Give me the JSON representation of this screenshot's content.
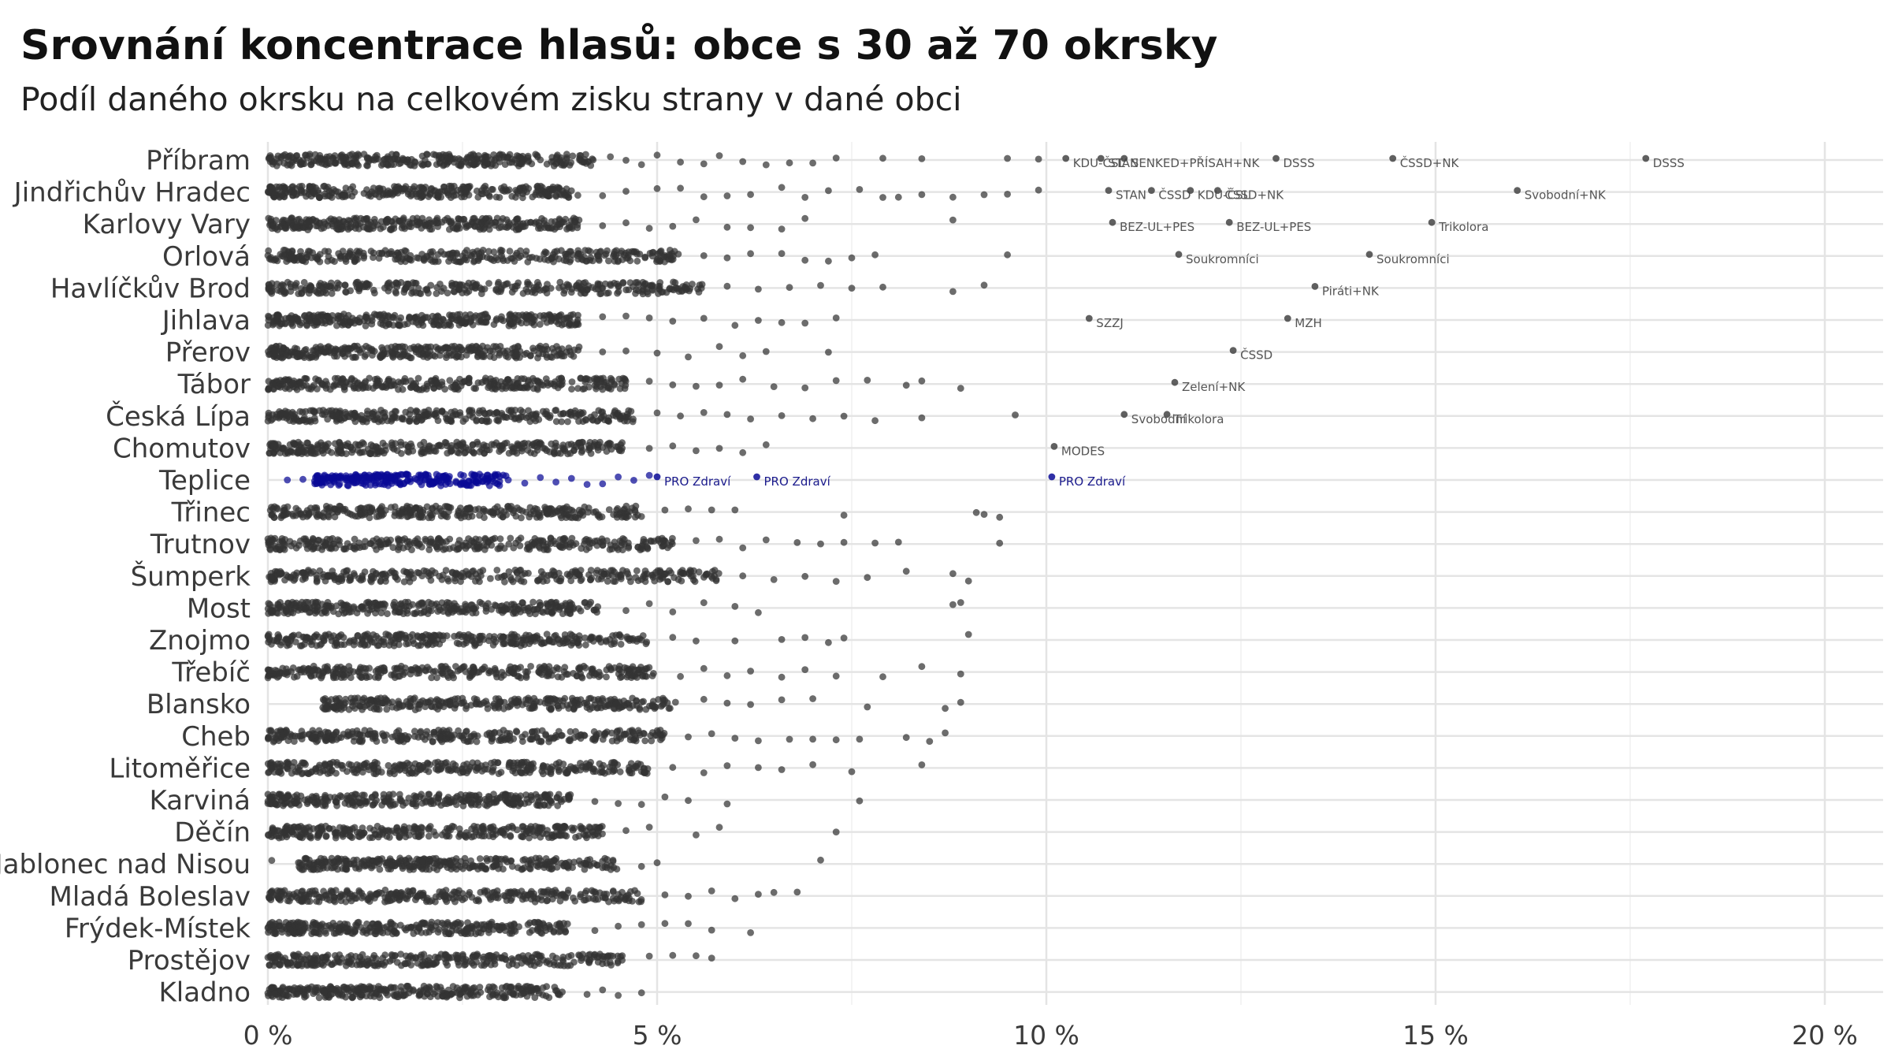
{
  "chart_data": {
    "type": "scatter",
    "title": "Srovnání koncentrace hlasů: obce s 30 až 70 okrsky",
    "subtitle": "Podíl daného okrsku na celkovém zisku strany v dané obci",
    "xlabel": "",
    "ylabel": "",
    "xlim": [
      0,
      20.8
    ],
    "x_ticks": [
      0,
      5,
      10,
      15,
      20
    ],
    "x_tick_labels": [
      "0 %",
      "5 %",
      "10 %",
      "15 %",
      "20 %"
    ],
    "grid": true,
    "highlight_color": "#0a0a96",
    "point_color": "#333333",
    "highlighted_category": "Teplice",
    "categories": [
      {
        "name": "Příbram",
        "dense_max": 4.2,
        "outliers": [
          4.4,
          4.6,
          4.8,
          5.0,
          5.3,
          5.6,
          5.8,
          6.1,
          6.4,
          6.7,
          7.0,
          7.3,
          7.9,
          8.4,
          9.5,
          9.9
        ]
      },
      {
        "name": "Jindřichův Hradec",
        "dense_max": 4.0,
        "outliers": [
          4.3,
          4.6,
          5.0,
          5.3,
          5.6,
          5.9,
          6.2,
          6.6,
          6.9,
          7.2,
          7.6,
          7.9,
          8.1,
          8.4,
          8.8,
          9.2,
          9.5,
          9.9
        ]
      },
      {
        "name": "Karlovy Vary",
        "dense_max": 4.0,
        "outliers": [
          4.3,
          4.6,
          4.9,
          5.2,
          5.5,
          5.9,
          6.2,
          6.6,
          6.9,
          8.8
        ]
      },
      {
        "name": "Orlová",
        "dense_max": 5.3,
        "outliers": [
          5.6,
          5.9,
          6.2,
          6.6,
          6.9,
          7.2,
          7.5,
          7.8,
          9.5
        ]
      },
      {
        "name": "Havlíčkův Brod",
        "dense_max": 5.6,
        "outliers": [
          5.9,
          6.3,
          6.7,
          7.1,
          7.5,
          7.9,
          8.8,
          9.2
        ]
      },
      {
        "name": "Jihlava",
        "dense_max": 4.0,
        "outliers": [
          4.3,
          4.6,
          4.9,
          5.2,
          5.6,
          6.0,
          6.3,
          6.6,
          6.9,
          7.3
        ]
      },
      {
        "name": "Přerov",
        "dense_max": 4.0,
        "outliers": [
          4.3,
          4.6,
          5.0,
          5.4,
          5.8,
          6.1,
          6.4,
          7.2
        ]
      },
      {
        "name": "Tábor",
        "dense_max": 4.6,
        "outliers": [
          4.9,
          5.2,
          5.5,
          5.8,
          6.1,
          6.5,
          6.9,
          7.3,
          7.7,
          8.2,
          8.4,
          8.9
        ]
      },
      {
        "name": "Česká Lípa",
        "dense_max": 4.7,
        "outliers": [
          5.0,
          5.3,
          5.6,
          5.9,
          6.2,
          6.6,
          7.0,
          7.4,
          7.8,
          8.4,
          9.6
        ]
      },
      {
        "name": "Chomutov",
        "dense_max": 4.6,
        "outliers": [
          4.9,
          5.2,
          5.5,
          5.8,
          6.1,
          6.4
        ]
      },
      {
        "name": "Teplice",
        "dense_min": 0.6,
        "dense_max": 3.1,
        "outliers": [
          0.25,
          0.45,
          3.3,
          3.5,
          3.7,
          3.9,
          4.1,
          4.3,
          4.5,
          4.7,
          4.9
        ]
      },
      {
        "name": "Třinec",
        "dense_max": 4.8,
        "outliers": [
          5.1,
          5.4,
          5.7,
          6.0,
          7.4,
          9.1,
          9.2,
          9.4
        ]
      },
      {
        "name": "Trutnov",
        "dense_max": 5.2,
        "outliers": [
          5.5,
          5.8,
          6.1,
          6.4,
          6.8,
          7.1,
          7.4,
          7.8,
          8.1,
          9.4
        ]
      },
      {
        "name": "Šumperk",
        "dense_max": 5.8,
        "outliers": [
          6.1,
          6.5,
          6.9,
          7.3,
          7.7,
          8.2,
          8.8,
          9.0
        ]
      },
      {
        "name": "Most",
        "dense_max": 4.3,
        "outliers": [
          4.6,
          4.9,
          5.2,
          5.6,
          6.0,
          6.3,
          8.8,
          8.9
        ]
      },
      {
        "name": "Znojmo",
        "dense_max": 4.9,
        "outliers": [
          5.2,
          5.5,
          6.0,
          6.6,
          6.9,
          7.2,
          7.4,
          9.0
        ]
      },
      {
        "name": "Třebíč",
        "dense_max": 5.0,
        "outliers": [
          5.3,
          5.6,
          5.9,
          6.2,
          6.6,
          6.9,
          7.3,
          7.9,
          8.4,
          8.9
        ]
      },
      {
        "name": "Blansko",
        "dense_min": 0.7,
        "dense_max": 5.3,
        "outliers": [
          5.6,
          5.9,
          6.2,
          6.6,
          7.0,
          7.7,
          8.7,
          8.9
        ]
      },
      {
        "name": "Cheb",
        "dense_max": 5.1,
        "outliers": [
          5.4,
          5.7,
          6.0,
          6.3,
          6.7,
          7.0,
          7.3,
          7.6,
          8.2,
          8.5,
          8.7
        ]
      },
      {
        "name": "Litoměřice",
        "dense_max": 4.9,
        "outliers": [
          5.2,
          5.6,
          5.9,
          6.3,
          6.6,
          7.0,
          7.5,
          8.4
        ]
      },
      {
        "name": "Karviná",
        "dense_max": 3.9,
        "outliers": [
          4.2,
          4.5,
          4.8,
          5.1,
          5.4,
          5.9,
          7.6
        ]
      },
      {
        "name": "Děčín",
        "dense_max": 4.3,
        "outliers": [
          4.6,
          4.9,
          5.5,
          5.8,
          7.3
        ]
      },
      {
        "name": "Jablonec nad Nisou",
        "dense_min": 0.35,
        "dense_max": 4.5,
        "outliers": [
          0.05,
          4.8,
          5.0,
          7.1
        ]
      },
      {
        "name": "Mladá Boleslav",
        "dense_max": 4.8,
        "outliers": [
          5.1,
          5.4,
          5.7,
          6.0,
          6.3,
          6.5,
          6.8
        ]
      },
      {
        "name": "Frýdek-Místek",
        "dense_max": 3.9,
        "outliers": [
          4.2,
          4.5,
          4.8,
          5.1,
          5.4,
          5.7,
          6.2
        ]
      },
      {
        "name": "Prostějov",
        "dense_max": 4.6,
        "outliers": [
          4.9,
          5.2,
          5.5,
          5.7
        ]
      },
      {
        "name": "Kladno",
        "dense_max": 3.8,
        "outliers": [
          4.1,
          4.3,
          4.5,
          4.8
        ]
      }
    ],
    "annotations": [
      {
        "category": "Příbram",
        "x": 10.25,
        "label": "KDU-ČSL"
      },
      {
        "category": "Příbram",
        "x": 10.7,
        "label": "STAN"
      },
      {
        "category": "Příbram",
        "x": 11.0,
        "label": "SENKED+PŘÍSAH+NK"
      },
      {
        "category": "Příbram",
        "x": 12.95,
        "label": "DSSS"
      },
      {
        "category": "Příbram",
        "x": 14.45,
        "label": "ČSSD+NK"
      },
      {
        "category": "Příbram",
        "x": 17.7,
        "label": "DSSS"
      },
      {
        "category": "Jindřichův Hradec",
        "x": 10.8,
        "label": "STAN"
      },
      {
        "category": "Jindřichův Hradec",
        "x": 11.35,
        "label": "ČSSD"
      },
      {
        "category": "Jindřichův Hradec",
        "x": 11.85,
        "label": "KDU-ČSL"
      },
      {
        "category": "Jindřichův Hradec",
        "x": 12.2,
        "label": "ČSSD+NK"
      },
      {
        "category": "Jindřichův Hradec",
        "x": 16.05,
        "label": "Svobodní+NK"
      },
      {
        "category": "Karlovy Vary",
        "x": 10.85,
        "label": "BEZ-UL+PES"
      },
      {
        "category": "Karlovy Vary",
        "x": 12.35,
        "label": "BEZ-UL+PES"
      },
      {
        "category": "Karlovy Vary",
        "x": 14.95,
        "label": "Trikolora"
      },
      {
        "category": "Orlová",
        "x": 11.7,
        "label": "Soukromníci"
      },
      {
        "category": "Orlová",
        "x": 14.15,
        "label": "Soukromníci"
      },
      {
        "category": "Havlíčkův Brod",
        "x": 13.45,
        "label": "Piráti+NK"
      },
      {
        "category": "Jihlava",
        "x": 10.55,
        "label": "SZZJ"
      },
      {
        "category": "Jihlava",
        "x": 13.1,
        "label": "MZH"
      },
      {
        "category": "Přerov",
        "x": 12.4,
        "label": "ČSSD"
      },
      {
        "category": "Tábor",
        "x": 11.65,
        "label": "Zelení+NK"
      },
      {
        "category": "Česká Lípa",
        "x": 11.0,
        "label": "Svobodní"
      },
      {
        "category": "Česká Lípa",
        "x": 11.55,
        "label": "Trikolora"
      },
      {
        "category": "Chomutov",
        "x": 10.1,
        "label": "MODES"
      },
      {
        "category": "Teplice",
        "x": 5.0,
        "label": "PRO Zdraví",
        "highlight": true
      },
      {
        "category": "Teplice",
        "x": 6.28,
        "label": "PRO Zdraví",
        "highlight": true
      },
      {
        "category": "Teplice",
        "x": 10.07,
        "label": "PRO Zdraví",
        "highlight": true
      }
    ]
  }
}
